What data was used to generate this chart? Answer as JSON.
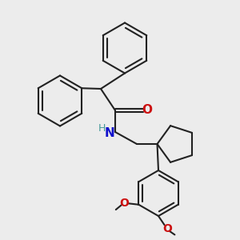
{
  "bg_color": "#ececec",
  "bond_color": "#222222",
  "O_color": "#cc1111",
  "N_color": "#1111cc",
  "H_color": "#449999",
  "lw": 1.5,
  "figsize": [
    3.0,
    3.0
  ],
  "dpi": 100,
  "xlim": [
    -1.0,
    9.0
  ],
  "ylim": [
    -1.5,
    8.5
  ]
}
